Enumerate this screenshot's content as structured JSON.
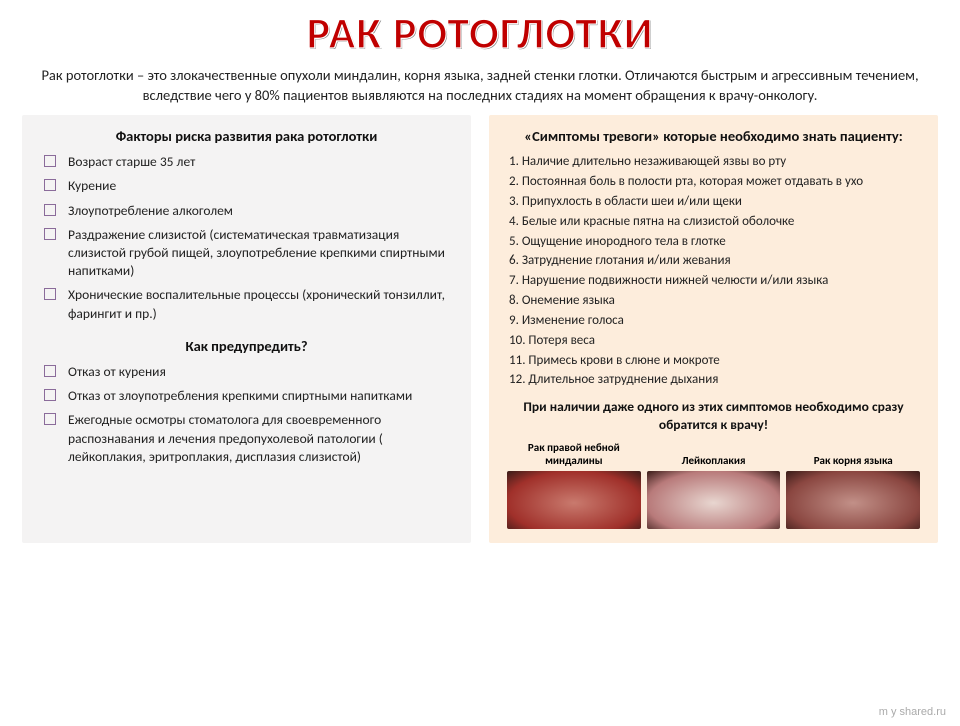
{
  "title": {
    "text": "РАК РОТОГЛОТКИ",
    "fill": "#c00000",
    "stroke": "#ffffff"
  },
  "intro": "Рак ротоглотки – это злокачественные опухоли миндалин, корня языка, задней стенки глотки. Отличаются быстрым и агрессивным течением, вследствие чего у 80% пациентов выявляются на последних стадиях на момент обращения к врачу-онкологу.",
  "left": {
    "bg": "#f4f3f3",
    "bullet_border": "#8a6b9a",
    "risk_heading": "Факторы риска развития рака ротоглотки",
    "risk_items": [
      "Возраст старше 35 лет",
      "Курение",
      "Злоупотребление алкоголем",
      "Раздражение слизистой (систематическая травматизация слизистой грубой пищей, злоупотребление крепкими спиртными напитками)",
      "Хронические воспалительные процессы (хронический тонзиллит, фарингит и пр.)"
    ],
    "prevent_heading": "Как предупредить?",
    "prevent_items": [
      "Отказ от курения",
      "Отказ от злоупотребления крепкими спиртными напитками",
      "Ежегодные осмотры стоматолога для своевременного распознавания и лечения предопухолевой патологии ( лейкоплакия, эритроплакия, дисплазия слизистой)"
    ]
  },
  "right": {
    "bg": "#fdeddc",
    "symptoms_heading": "«Симптомы тревоги» которые необходимо знать пациенту:",
    "symptoms": [
      "Наличие длительно незаживающей язвы во рту",
      "Постоянная боль в полости рта, которая может отдавать в ухо",
      "Припухлость в области шеи и/или щеки",
      "Белые или красные пятна на слизистой оболочке",
      "Ощущение инородного тела в глотке",
      "Затруднение глотания и/или жевания",
      "Нарушение подвижности нижней челюсти и/или языка",
      "Онемение языка",
      "Изменение голоса",
      "Потеря веса",
      "Примесь крови в слюне и мокроте",
      "Длительное затруднение дыхания"
    ],
    "warning": "При наличии даже одного из этих симптомов необходимо сразу обратится к врачу!",
    "examples": [
      {
        "label": "Рак правой небной миндалины",
        "color": "#a0302a",
        "grad": "#c97a6e"
      },
      {
        "label": "Лейкоплакия",
        "color": "#b87a7a",
        "grad": "#e8d6d0"
      },
      {
        "label": "Рак корня языка",
        "color": "#8a4640",
        "grad": "#c29088"
      }
    ]
  },
  "watermark": "m y shared.ru"
}
